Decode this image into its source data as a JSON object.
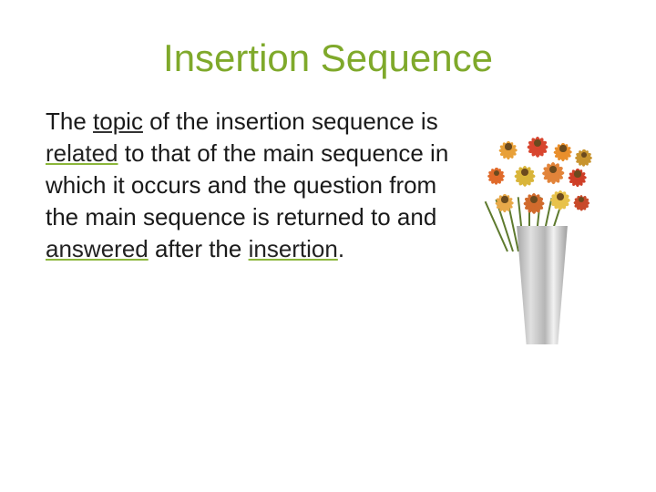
{
  "title": {
    "text": "Insertion Sequence",
    "color": "#7fa92b",
    "fontsize": 42
  },
  "body": {
    "fontsize": 26,
    "color": "#1a1a1a",
    "segments": {
      "s1": "The ",
      "s2": "topic",
      "s3": " of the insertion sequence  is ",
      "s4": "related",
      "s5": " to that of the main sequence in which it occurs and the question from the main sequence is returned to and ",
      "s6": "answered",
      "s7": " after the ",
      "s8": "insertion",
      "s9": "."
    }
  },
  "figure": {
    "flower_colors": [
      "#e8a038",
      "#d8462f",
      "#e98f2c",
      "#c8942e",
      "#e06a2a",
      "#d9b53a",
      "#e2843a",
      "#cf3f28",
      "#e8a94a",
      "#d16b2d",
      "#e8c24a",
      "#c84a2a"
    ],
    "stem_color": "#5e7a2e",
    "vase_gradient": [
      "#9a9a9a",
      "#e0e0e0",
      "#b5b5b5",
      "#f2f2f2",
      "#8d8d8d"
    ]
  }
}
